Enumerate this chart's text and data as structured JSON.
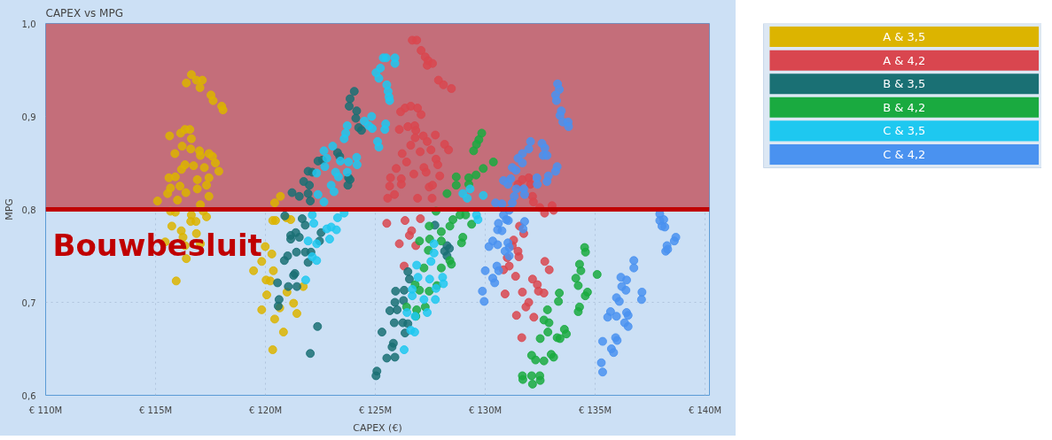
{
  "chart_data": {
    "type": "scatter",
    "title": "CAPEX vs MPG",
    "xlabel": "CAPEX (€)",
    "ylabel": "MPG",
    "xlim": [
      110,
      140.2
    ],
    "ylim": [
      0.6,
      1.0
    ],
    "xticks": [
      {
        "value": 110,
        "label": "€ 110M"
      },
      {
        "value": 115,
        "label": "€ 115M"
      },
      {
        "value": 120,
        "label": "€ 120M"
      },
      {
        "value": 125,
        "label": "€ 125M"
      },
      {
        "value": 130,
        "label": "€ 130M"
      },
      {
        "value": 135,
        "label": "€ 135M"
      },
      {
        "value": 140,
        "label": "€ 140M"
      }
    ],
    "yticks": [
      {
        "value": 0.6,
        "label": "0,6"
      },
      {
        "value": 0.7,
        "label": "0,7"
      },
      {
        "value": 0.8,
        "label": "0,8"
      },
      {
        "value": 0.9,
        "label": "0,9"
      },
      {
        "value": 1.0,
        "label": "1,0"
      }
    ],
    "grid": true,
    "legend": "right",
    "marker": "circle",
    "bands": [
      {
        "axis": "y",
        "from": 0.8,
        "to": 1.0,
        "color": "#c46e7a"
      }
    ],
    "ref_lines": [
      {
        "axis": "y",
        "value": 0.8,
        "label": "Bouwbesluit",
        "color": "#c00000"
      }
    ],
    "series": [
      {
        "name": "A & 3,5",
        "color": "#dcb400",
        "x": [
          116.63,
          116.4,
          116.86,
          117.13,
          117.02,
          117.52,
          117.62,
          118.01,
          118.07,
          115.64,
          116.14,
          116.34,
          116.56,
          116.63,
          116.21,
          115.88,
          116.6,
          117.0,
          117.04,
          117.43,
          117.59,
          117.72,
          117.88,
          117.22,
          116.73,
          116.34,
          116.18,
          115.61,
          115.9,
          116.9,
          117.43,
          115.68,
          116.11,
          116.9,
          117.32,
          115.55,
          116.38,
          117.43,
          115.09,
          116.0,
          117.04,
          115.68,
          115.9,
          116.63,
          116.6,
          116.84,
          117.17,
          117.32,
          115.74,
          116.17,
          116.86,
          116.25,
          115.44,
          117.04,
          116.34,
          116.4,
          115.94,
          120.33,
          120.46,
          120.68,
          120.42,
          120.95,
          119.99,
          120.29,
          119.83,
          119.46,
          120.36,
          120.03,
          120.22,
          120.06,
          119.83,
          120.65,
          120.42,
          121.28,
          121.43,
          121.72,
          120.98,
          120.82,
          120.33,
          121.15
        ],
        "values": [
          0.945,
          0.936,
          0.939,
          0.939,
          0.931,
          0.923,
          0.917,
          0.911,
          0.907,
          0.879,
          0.882,
          0.886,
          0.886,
          0.876,
          0.868,
          0.86,
          0.865,
          0.863,
          0.858,
          0.86,
          0.857,
          0.85,
          0.841,
          0.845,
          0.847,
          0.848,
          0.843,
          0.834,
          0.835,
          0.832,
          0.834,
          0.823,
          0.825,
          0.822,
          0.826,
          0.817,
          0.818,
          0.814,
          0.809,
          0.81,
          0.805,
          0.798,
          0.797,
          0.794,
          0.787,
          0.787,
          0.798,
          0.792,
          0.782,
          0.777,
          0.774,
          0.77,
          0.765,
          0.763,
          0.761,
          0.747,
          0.723,
          0.788,
          0.788,
          0.814,
          0.807,
          0.791,
          0.76,
          0.752,
          0.744,
          0.734,
          0.734,
          0.724,
          0.723,
          0.708,
          0.692,
          0.694,
          0.682,
          0.699,
          0.688,
          0.717,
          0.711,
          0.668,
          0.649,
          0.789
        ]
      },
      {
        "name": "A & 4,2",
        "color": "#d9464f",
        "x": [
          126.68,
          126.88,
          127.08,
          127.27,
          127.4,
          127.6,
          127.36,
          127.87,
          128.1,
          128.46,
          126.15,
          126.35,
          126.61,
          126.92,
          127.08,
          126.09,
          126.48,
          126.79,
          126.84,
          127.18,
          127.36,
          126.81,
          127.73,
          126.61,
          127.04,
          127.53,
          128.15,
          128.33,
          126.22,
          126.42,
          127.76,
          127.84,
          125.95,
          126.75,
          127.21,
          127.31,
          125.69,
          126.18,
          127.93,
          125.65,
          126.18,
          127.45,
          127.6,
          125.87,
          125.56,
          126.92,
          127.58,
          125.52,
          126.35,
          127.05,
          126.65,
          126.55,
          126.09,
          126.84,
          126.31,
          131.49,
          131.69,
          131.98,
          132.06,
          132.15,
          132.19,
          132.48,
          133.04,
          133.11,
          132.7,
          131.56,
          131.75,
          131.29,
          131.23,
          131.49,
          131.53,
          131.0,
          131.09,
          130.83,
          131.38,
          132.71,
          132.91,
          132.15,
          132.37,
          132.42,
          132.67,
          131.69,
          130.9,
          131.98,
          131.85,
          131.42,
          132.21,
          131.66
        ],
        "values": [
          0.982,
          0.982,
          0.971,
          0.964,
          0.96,
          0.957,
          0.955,
          0.939,
          0.934,
          0.93,
          0.905,
          0.909,
          0.911,
          0.909,
          0.902,
          0.886,
          0.889,
          0.89,
          0.885,
          0.879,
          0.873,
          0.877,
          0.88,
          0.869,
          0.862,
          0.864,
          0.87,
          0.864,
          0.86,
          0.851,
          0.854,
          0.848,
          0.844,
          0.838,
          0.845,
          0.84,
          0.834,
          0.833,
          0.836,
          0.825,
          0.827,
          0.824,
          0.826,
          0.816,
          0.812,
          0.812,
          0.812,
          0.785,
          0.788,
          0.79,
          0.777,
          0.772,
          0.763,
          0.761,
          0.739,
          0.827,
          0.832,
          0.834,
          0.827,
          0.814,
          0.808,
          0.802,
          0.804,
          0.799,
          0.796,
          0.782,
          0.774,
          0.767,
          0.761,
          0.755,
          0.749,
          0.748,
          0.739,
          0.735,
          0.728,
          0.744,
          0.735,
          0.725,
          0.719,
          0.712,
          0.71,
          0.711,
          0.709,
          0.7,
          0.695,
          0.686,
          0.684,
          0.662
        ]
      },
      {
        "name": "B & 3,5",
        "color": "#1a7074",
        "x": [
          124.04,
          123.85,
          123.81,
          124.15,
          124.11,
          124.24,
          124.37,
          123.28,
          123.38,
          122.39,
          122.59,
          121.94,
          122.13,
          121.74,
          122.0,
          121.21,
          121.54,
          122.04,
          123.78,
          123.75,
          123.85,
          121.94,
          120.88,
          121.67,
          121.81,
          121.15,
          121.38,
          121.15,
          121.54,
          122.53,
          122.46,
          121.41,
          121.81,
          122.07,
          121.01,
          121.94,
          120.86,
          121.34,
          121.28,
          120.55,
          121.04,
          121.43,
          120.62,
          120.58,
          122.37,
          122.04,
          126.48,
          126.55,
          125.92,
          126.31,
          125.89,
          126.28,
          125.66,
          125.99,
          125.86,
          126.25,
          126.48,
          126.35,
          125.3,
          125.82,
          125.76,
          125.52,
          125.89,
          125.07,
          125.03,
          128.26,
          128.37,
          128.15,
          128.26,
          127.71
        ],
        "values": [
          0.927,
          0.919,
          0.911,
          0.906,
          0.898,
          0.888,
          0.885,
          0.861,
          0.857,
          0.852,
          0.853,
          0.841,
          0.84,
          0.83,
          0.826,
          0.818,
          0.814,
          0.809,
          0.834,
          0.826,
          0.832,
          0.817,
          0.793,
          0.79,
          0.783,
          0.772,
          0.775,
          0.768,
          0.77,
          0.775,
          0.766,
          0.754,
          0.754,
          0.754,
          0.75,
          0.743,
          0.745,
          0.731,
          0.729,
          0.721,
          0.717,
          0.717,
          0.703,
          0.696,
          0.674,
          0.645,
          0.733,
          0.725,
          0.712,
          0.713,
          0.7,
          0.702,
          0.691,
          0.692,
          0.678,
          0.678,
          0.677,
          0.667,
          0.668,
          0.656,
          0.652,
          0.64,
          0.641,
          0.626,
          0.621,
          0.761,
          0.758,
          0.755,
          0.75,
          0.783
        ]
      },
      {
        "name": "B & 4,2",
        "color": "#1aaa40",
        "x": [
          129.84,
          129.71,
          129.6,
          129.47,
          130.37,
          129.91,
          129.58,
          129.25,
          128.68,
          128.68,
          129.25,
          128.26,
          127.76,
          128.53,
          128.85,
          129.11,
          128.39,
          129.38,
          127.45,
          128.0,
          127.01,
          127.47,
          128.98,
          128.92,
          128.0,
          127.41,
          128.39,
          128.46,
          127.21,
          128.0,
          126.81,
          127.01,
          127.45,
          127.8,
          126.42,
          126.88,
          127.27,
          126.84,
          134.52,
          134.56,
          134.29,
          134.35,
          134.12,
          134.23,
          135.09,
          134.65,
          134.55,
          134.29,
          134.23,
          133.37,
          133.33,
          132.83,
          132.67,
          132.9,
          133.6,
          133.69,
          132.85,
          132.5,
          133.27,
          133.4,
          132.11,
          132.29,
          133.0,
          133.11,
          132.67,
          131.69,
          131.71,
          132.11,
          132.15,
          132.48,
          132.5
        ],
        "values": [
          0.882,
          0.875,
          0.87,
          0.863,
          0.851,
          0.844,
          0.837,
          0.834,
          0.835,
          0.826,
          0.827,
          0.817,
          0.798,
          0.789,
          0.794,
          0.794,
          0.782,
          0.784,
          0.782,
          0.776,
          0.766,
          0.768,
          0.77,
          0.764,
          0.766,
          0.756,
          0.745,
          0.741,
          0.737,
          0.737,
          0.719,
          0.713,
          0.712,
          0.718,
          0.695,
          0.692,
          0.695,
          0.685,
          0.759,
          0.754,
          0.741,
          0.734,
          0.726,
          0.718,
          0.73,
          0.711,
          0.707,
          0.695,
          0.69,
          0.71,
          0.701,
          0.692,
          0.681,
          0.678,
          0.671,
          0.666,
          0.668,
          0.661,
          0.662,
          0.661,
          0.643,
          0.638,
          0.644,
          0.641,
          0.637,
          0.621,
          0.617,
          0.621,
          0.612,
          0.621,
          0.616
        ]
      },
      {
        "name": "C & 3,5",
        "color": "#1ec8f0",
        "x": [
          125.36,
          125.49,
          125.89,
          125.89,
          125.23,
          125.03,
          125.16,
          125.52,
          125.58,
          125.62,
          125.65,
          124.83,
          124.5,
          124.7,
          124.86,
          125.47,
          125.43,
          125.1,
          125.16,
          123.72,
          123.65,
          123.58,
          123.06,
          122.66,
          122.79,
          122.7,
          123.41,
          123.78,
          124.15,
          124.17,
          122.33,
          123.19,
          123.32,
          123.72,
          122.99,
          123.12,
          122.39,
          122.66,
          128.98,
          129.31,
          129.91,
          129.18,
          122.13,
          122.2,
          123.28,
          123.58,
          122.79,
          122.99,
          123.23,
          122.92,
          121.94,
          122.33,
          122.13,
          122.33,
          121.83,
          126.88,
          127.53,
          127.67,
          127.67,
          126.94,
          127.47,
          128.06,
          128.1,
          127.76,
          126.68,
          126.68,
          127.21,
          127.73,
          126.44,
          126.81,
          127.36,
          126.61,
          126.79,
          126.31,
          129.6,
          129.67
        ],
        "values": [
          0.963,
          0.963,
          0.963,
          0.957,
          0.952,
          0.947,
          0.941,
          0.934,
          0.927,
          0.921,
          0.917,
          0.9,
          0.895,
          0.89,
          0.887,
          0.892,
          0.886,
          0.873,
          0.867,
          0.89,
          0.882,
          0.876,
          0.868,
          0.863,
          0.855,
          0.846,
          0.852,
          0.851,
          0.856,
          0.848,
          0.839,
          0.84,
          0.835,
          0.84,
          0.826,
          0.819,
          0.816,
          0.808,
          0.817,
          0.822,
          0.815,
          0.812,
          0.794,
          0.785,
          0.791,
          0.796,
          0.779,
          0.781,
          0.778,
          0.768,
          0.766,
          0.763,
          0.749,
          0.745,
          0.724,
          0.74,
          0.744,
          0.753,
          0.763,
          0.727,
          0.725,
          0.727,
          0.72,
          0.715,
          0.714,
          0.707,
          0.703,
          0.703,
          0.689,
          0.685,
          0.689,
          0.67,
          0.668,
          0.649,
          0.794,
          0.789
        ]
      },
      {
        "name": "C & 4,2",
        "color": "#4a92f0",
        "x": [
          133.29,
          133.37,
          133.2,
          133.24,
          133.46,
          133.4,
          133.53,
          133.77,
          133.79,
          132.06,
          131.98,
          132.58,
          132.71,
          132.63,
          132.81,
          131.69,
          131.49,
          131.69,
          131.23,
          131.4,
          133.27,
          133.2,
          132.87,
          132.81,
          132.35,
          132.37,
          130.83,
          131.03,
          131.16,
          131.42,
          131.75,
          131.32,
          131.79,
          130.47,
          130.76,
          131.23,
          130.83,
          131.09,
          130.6,
          130.96,
          131.05,
          130.56,
          130.76,
          131.79,
          131.72,
          130.34,
          130.17,
          130.56,
          131.03,
          131.09,
          130.9,
          131.09,
          130.0,
          130.53,
          130.61,
          130.34,
          130.43,
          129.87,
          129.95,
          137.94,
          137.94,
          138.12,
          138.04,
          138.17,
          138.67,
          138.6,
          138.27,
          138.21,
          138.3,
          136.76,
          136.76,
          136.17,
          136.43,
          136.21,
          136.4,
          137.13,
          137.11,
          135.97,
          136.1,
          135.7,
          135.57,
          135.97,
          136.43,
          136.5,
          136.34,
          136.5,
          135.34,
          135.93,
          136.0,
          135.74,
          135.84,
          135.28,
          135.34
        ],
        "values": [
          0.935,
          0.929,
          0.923,
          0.917,
          0.906,
          0.901,
          0.894,
          0.894,
          0.889,
          0.873,
          0.865,
          0.871,
          0.866,
          0.858,
          0.858,
          0.86,
          0.855,
          0.85,
          0.845,
          0.842,
          0.846,
          0.841,
          0.836,
          0.83,
          0.834,
          0.827,
          0.831,
          0.827,
          0.833,
          0.822,
          0.822,
          0.814,
          0.816,
          0.807,
          0.806,
          0.807,
          0.794,
          0.799,
          0.785,
          0.789,
          0.788,
          0.778,
          0.777,
          0.787,
          0.779,
          0.766,
          0.76,
          0.762,
          0.764,
          0.759,
          0.755,
          0.75,
          0.734,
          0.739,
          0.734,
          0.726,
          0.721,
          0.712,
          0.701,
          0.795,
          0.788,
          0.789,
          0.782,
          0.781,
          0.77,
          0.766,
          0.761,
          0.755,
          0.757,
          0.745,
          0.737,
          0.727,
          0.724,
          0.717,
          0.713,
          0.711,
          0.703,
          0.705,
          0.701,
          0.69,
          0.684,
          0.685,
          0.689,
          0.686,
          0.678,
          0.674,
          0.658,
          0.662,
          0.659,
          0.65,
          0.646,
          0.635,
          0.625
        ]
      }
    ]
  }
}
